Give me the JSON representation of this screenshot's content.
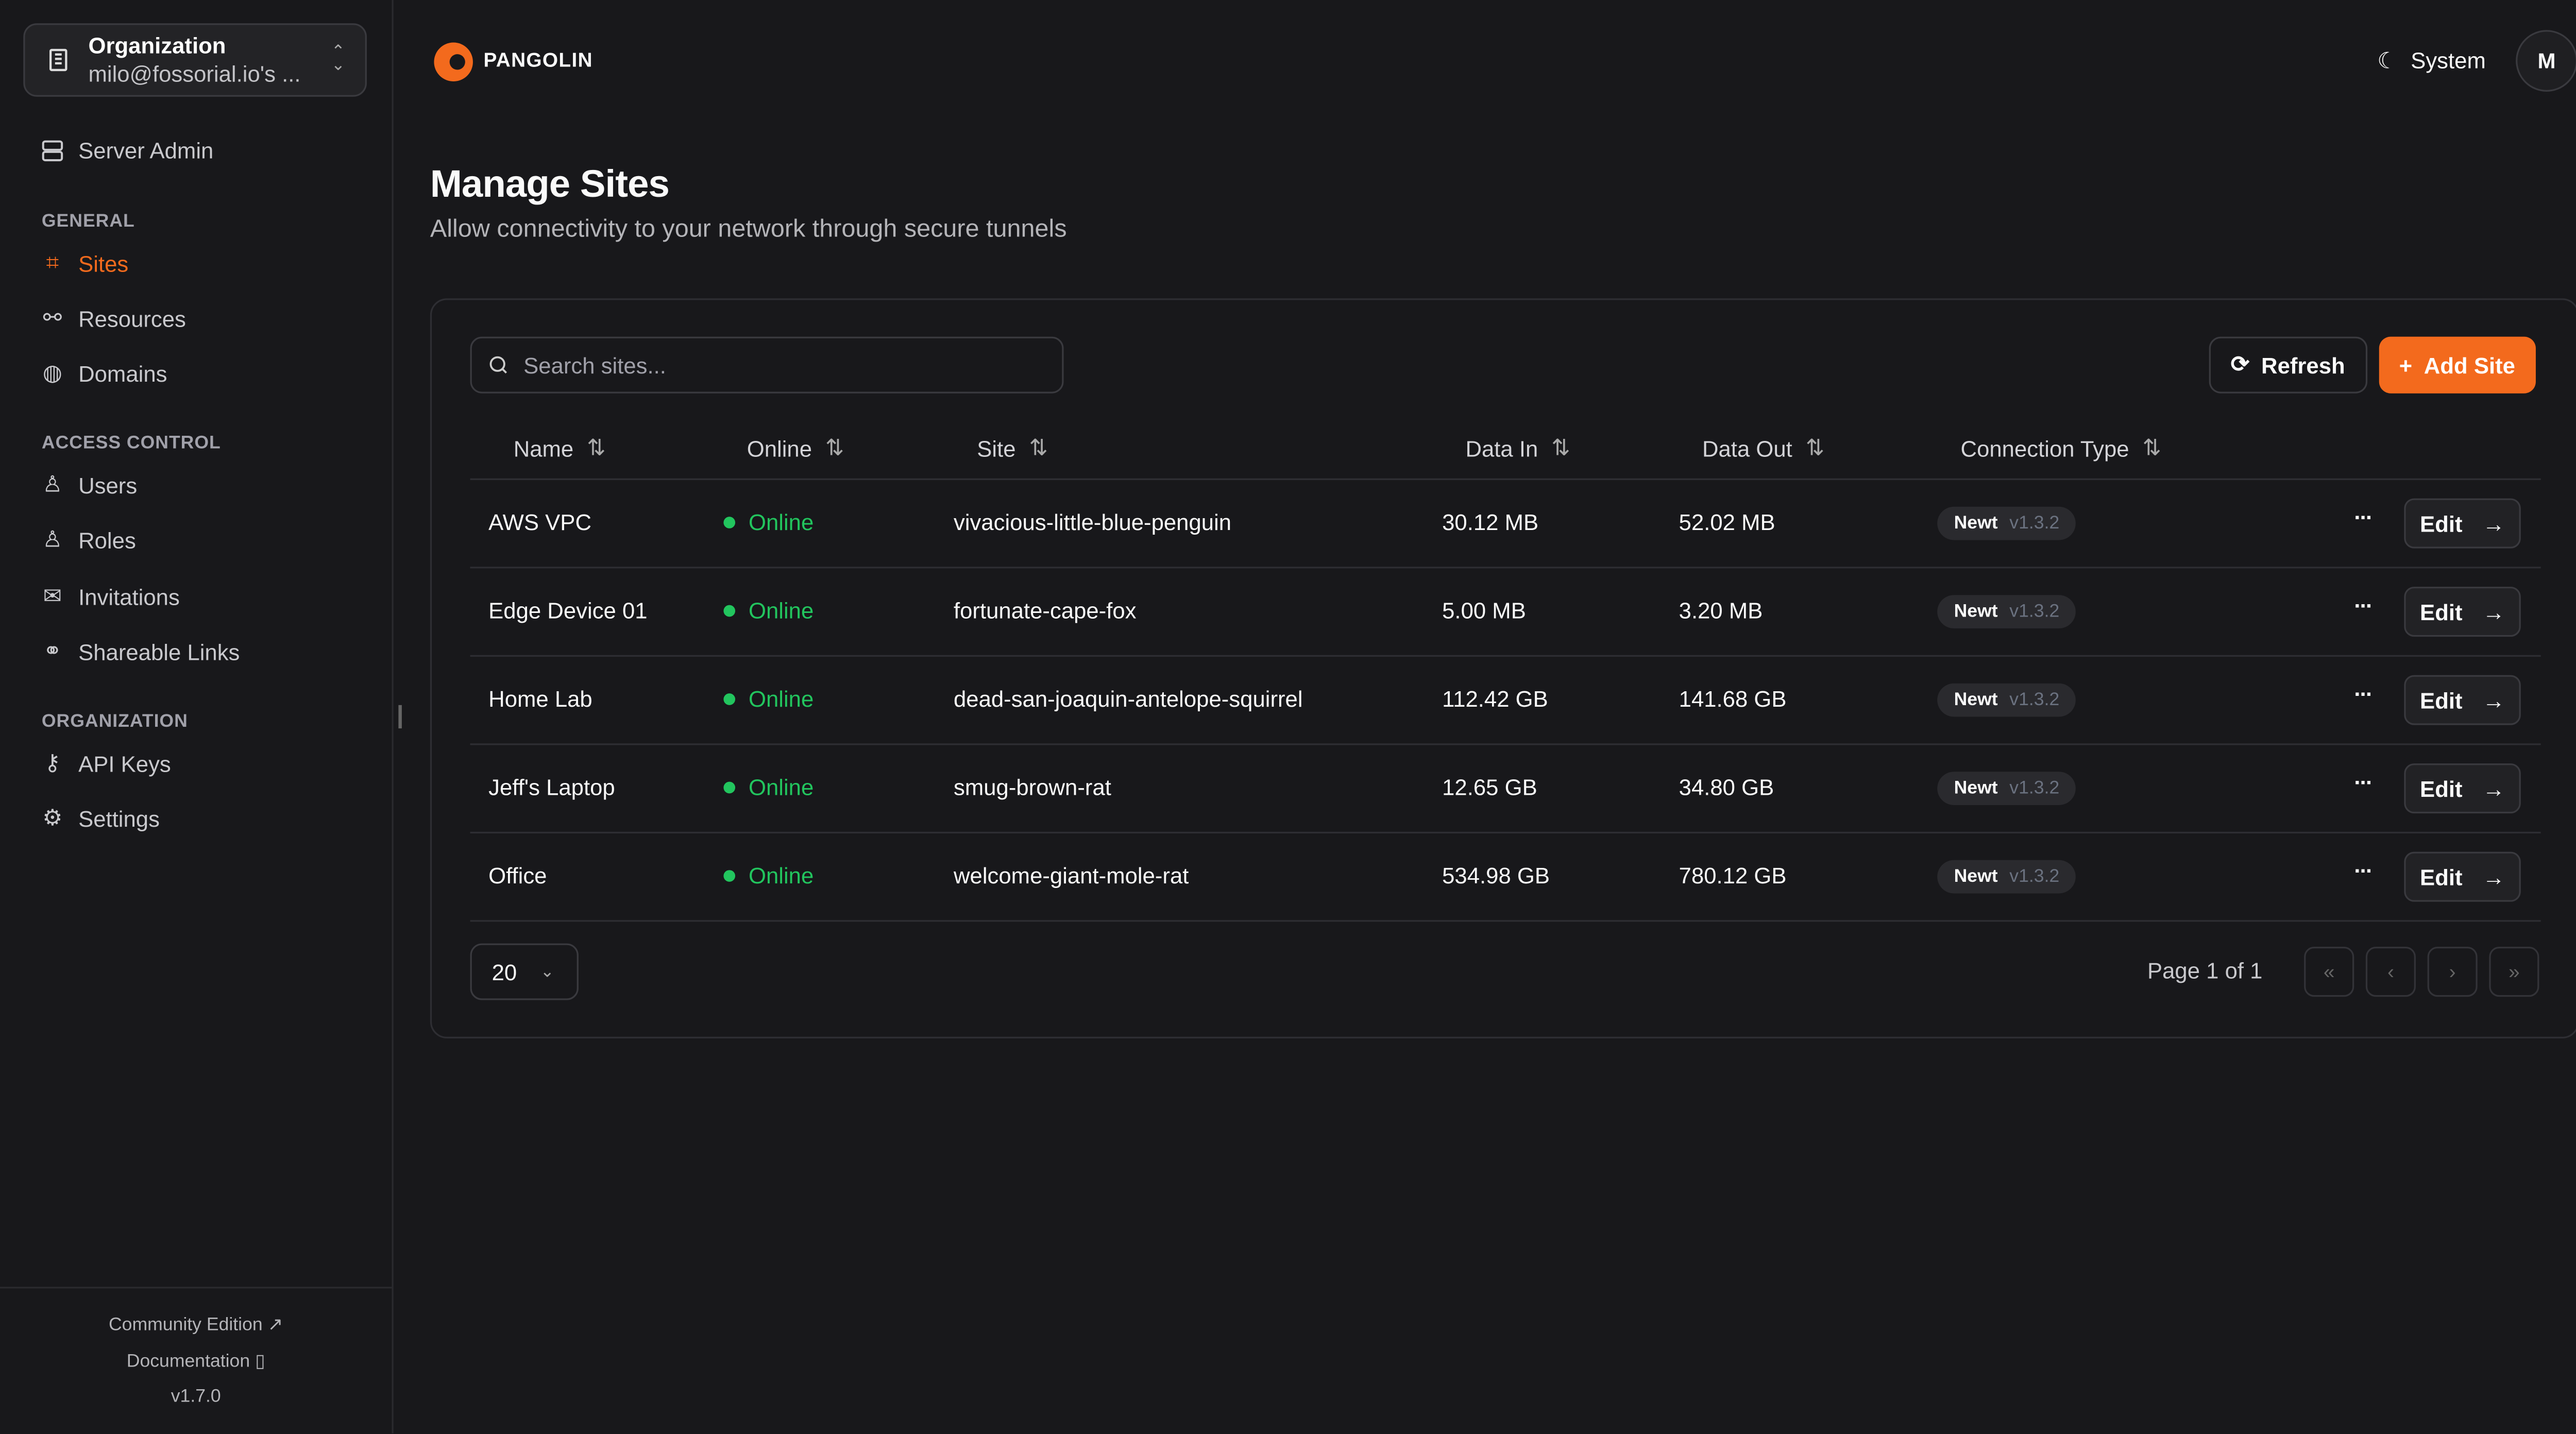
{
  "org": {
    "title": "Organization",
    "subtitle": "milo@fossorial.io's ..."
  },
  "sidebar": {
    "server_admin": "Server Admin",
    "sections": [
      {
        "label": "GENERAL"
      },
      {
        "label": "ACCESS CONTROL"
      },
      {
        "label": "ORGANIZATION"
      }
    ],
    "items": [
      {
        "label": "Sites",
        "active": true,
        "icon": "sites-icon"
      },
      {
        "label": "Resources",
        "icon": "resources-icon"
      },
      {
        "label": "Domains",
        "icon": "globe-icon"
      },
      {
        "label": "Users",
        "icon": "user-icon"
      },
      {
        "label": "Roles",
        "icon": "users-icon"
      },
      {
        "label": "Invitations",
        "icon": "mail-icon"
      },
      {
        "label": "Shareable Links",
        "icon": "link-icon"
      },
      {
        "label": "API Keys",
        "icon": "key-icon"
      },
      {
        "label": "Settings",
        "icon": "gear-icon"
      }
    ],
    "footer": {
      "community": "Community Edition",
      "docs": "Documentation",
      "version": "v1.7.0"
    }
  },
  "header": {
    "brand": "PANGOLIN",
    "theme": "System",
    "avatar": "M"
  },
  "page": {
    "title": "Manage Sites",
    "subtitle": "Allow connectivity to your network through secure tunnels"
  },
  "toolbar": {
    "search_placeholder": "Search sites...",
    "refresh": "Refresh",
    "add": "Add Site"
  },
  "table": {
    "columns": [
      "Name",
      "Online",
      "Site",
      "Data In",
      "Data Out",
      "Connection Type"
    ],
    "rows": [
      {
        "name": "AWS VPC",
        "online": "Online",
        "site": "vivacious-little-blue-penguin",
        "data_in": "30.12 MB",
        "data_out": "52.02 MB",
        "type": "Newt",
        "version": "v1.3.2"
      },
      {
        "name": "Edge Device 01",
        "online": "Online",
        "site": "fortunate-cape-fox",
        "data_in": "5.00 MB",
        "data_out": "3.20 MB",
        "type": "Newt",
        "version": "v1.3.2"
      },
      {
        "name": "Home Lab",
        "online": "Online",
        "site": "dead-san-joaquin-antelope-squirrel",
        "data_in": "112.42 GB",
        "data_out": "141.68 GB",
        "type": "Newt",
        "version": "v1.3.2"
      },
      {
        "name": "Jeff's Laptop",
        "online": "Online",
        "site": "smug-brown-rat",
        "data_in": "12.65 GB",
        "data_out": "34.80 GB",
        "type": "Newt",
        "version": "v1.3.2"
      },
      {
        "name": "Office",
        "online": "Online",
        "site": "welcome-giant-mole-rat",
        "data_in": "534.98 GB",
        "data_out": "780.12 GB",
        "type": "Newt",
        "version": "v1.3.2"
      }
    ],
    "edit_label": "Edit",
    "more_label": "···"
  },
  "pagination": {
    "page_size": "20",
    "page_info": "Page 1 of 1"
  },
  "colors": {
    "accent": "#f36a1d",
    "online": "#22c55e",
    "background": "#18181b"
  }
}
